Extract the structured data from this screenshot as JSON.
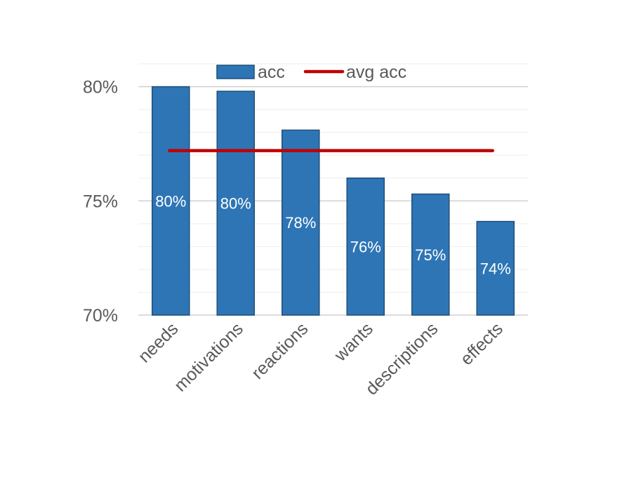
{
  "chart_data": {
    "type": "bar",
    "categories": [
      "needs",
      "motivations",
      "reactions",
      "wants",
      "descriptions",
      "effects"
    ],
    "series": [
      {
        "name": "acc",
        "kind": "bar",
        "values": [
          80.0,
          79.8,
          78.1,
          76.0,
          75.3,
          74.1
        ],
        "data_labels": [
          "80%",
          "80%",
          "78%",
          "76%",
          "75%",
          "74%"
        ],
        "color": "#2E75B6",
        "edge_color": "#1F4E79"
      },
      {
        "name": "avg acc",
        "kind": "line",
        "value": 77.2,
        "color": "#C00000"
      }
    ],
    "ylim": [
      70,
      81
    ],
    "yticks": [
      70,
      75,
      80
    ],
    "ytick_labels": [
      "70%",
      "75%",
      "80%"
    ],
    "minor_grid_step": 1,
    "grid": true,
    "grid_color": "#D9D9D9",
    "legend_position": "top-center",
    "title": "",
    "xlabel": "",
    "ylabel": ""
  }
}
